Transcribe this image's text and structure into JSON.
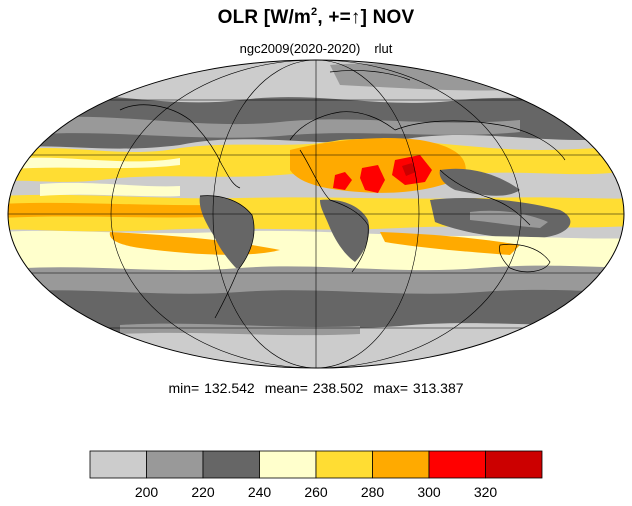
{
  "title": {
    "text": "OLR [W/m",
    "sup": "2",
    "rest": ", +=↑] NOV"
  },
  "subtitle": {
    "run": "ngc2009(2020-2020)",
    "variable": "rlut"
  },
  "stats": {
    "min": "min= 132.542",
    "mean": "mean= 238.502",
    "max": "max= 313.387"
  },
  "colorbar": {
    "colors": [
      "#cccccc",
      "#999999",
      "#666666",
      "#ffffcc",
      "#ffdd33",
      "#ffaa00",
      "#ff0000",
      "#cc0000"
    ],
    "labels": [
      "200",
      "220",
      "240",
      "260",
      "280",
      "300",
      "320"
    ]
  },
  "map": {
    "projection": "mollweide"
  }
}
